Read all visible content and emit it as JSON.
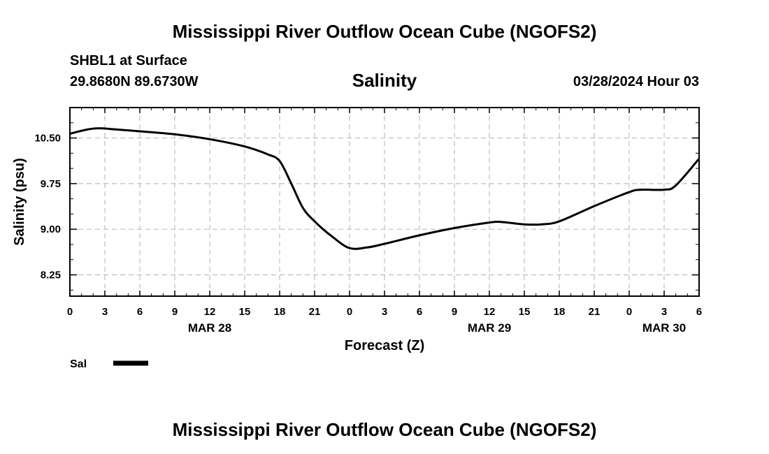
{
  "header": {
    "title": "Mississippi River Outflow Ocean Cube (NGOFS2)",
    "station": "SHBL1 at Surface",
    "coordinates": "29.8680N  89.6730W",
    "plot_title": "Salinity",
    "datetime": "03/28/2024 Hour 03"
  },
  "footer": {
    "title": "Mississippi River Outflow Ocean Cube (NGOFS2)"
  },
  "chart_data": {
    "type": "line",
    "title": "Salinity",
    "xlabel": "Forecast (Z)",
    "ylabel": "Salinity (psu)",
    "x_unit": "hours since 03/28 00Z",
    "xlim": [
      0,
      54
    ],
    "ylim": [
      7.9,
      11.0
    ],
    "x_ticks": [
      {
        "x": 0,
        "label": "0"
      },
      {
        "x": 3,
        "label": "3"
      },
      {
        "x": 6,
        "label": "6"
      },
      {
        "x": 9,
        "label": "9"
      },
      {
        "x": 12,
        "label": "12"
      },
      {
        "x": 15,
        "label": "15"
      },
      {
        "x": 18,
        "label": "18"
      },
      {
        "x": 21,
        "label": "21"
      },
      {
        "x": 24,
        "label": "0"
      },
      {
        "x": 27,
        "label": "3"
      },
      {
        "x": 30,
        "label": "6"
      },
      {
        "x": 33,
        "label": "9"
      },
      {
        "x": 36,
        "label": "12"
      },
      {
        "x": 39,
        "label": "15"
      },
      {
        "x": 42,
        "label": "18"
      },
      {
        "x": 45,
        "label": "21"
      },
      {
        "x": 48,
        "label": "0"
      },
      {
        "x": 51,
        "label": "3"
      },
      {
        "x": 54,
        "label": "6"
      }
    ],
    "date_labels": [
      {
        "x": 12,
        "label": "MAR 28"
      },
      {
        "x": 36,
        "label": "MAR 29"
      },
      {
        "x": 51,
        "label": "MAR 30"
      }
    ],
    "y_ticks": [
      {
        "y": 8.25,
        "label": "8.25"
      },
      {
        "y": 9.0,
        "label": "9.00"
      },
      {
        "y": 9.75,
        "label": "9.75"
      },
      {
        "y": 10.5,
        "label": "10.50"
      }
    ],
    "grid": true,
    "legend": "bottom-left",
    "series": [
      {
        "name": "Sal",
        "color": "#000000",
        "points": [
          [
            0,
            10.57
          ],
          [
            1.5,
            10.64
          ],
          [
            2.5,
            10.66
          ],
          [
            4,
            10.64
          ],
          [
            6,
            10.61
          ],
          [
            9,
            10.56
          ],
          [
            12,
            10.48
          ],
          [
            15,
            10.36
          ],
          [
            17,
            10.23
          ],
          [
            18,
            10.12
          ],
          [
            19,
            9.75
          ],
          [
            20,
            9.35
          ],
          [
            21,
            9.13
          ],
          [
            22.5,
            8.88
          ],
          [
            24,
            8.69
          ],
          [
            25.5,
            8.7
          ],
          [
            27,
            8.76
          ],
          [
            30,
            8.9
          ],
          [
            33,
            9.02
          ],
          [
            36,
            9.11
          ],
          [
            37,
            9.12
          ],
          [
            39,
            9.08
          ],
          [
            40.5,
            9.08
          ],
          [
            42,
            9.13
          ],
          [
            45,
            9.38
          ],
          [
            48,
            9.61
          ],
          [
            49,
            9.65
          ],
          [
            51,
            9.65
          ],
          [
            52,
            9.72
          ],
          [
            54,
            10.16
          ]
        ]
      }
    ]
  }
}
